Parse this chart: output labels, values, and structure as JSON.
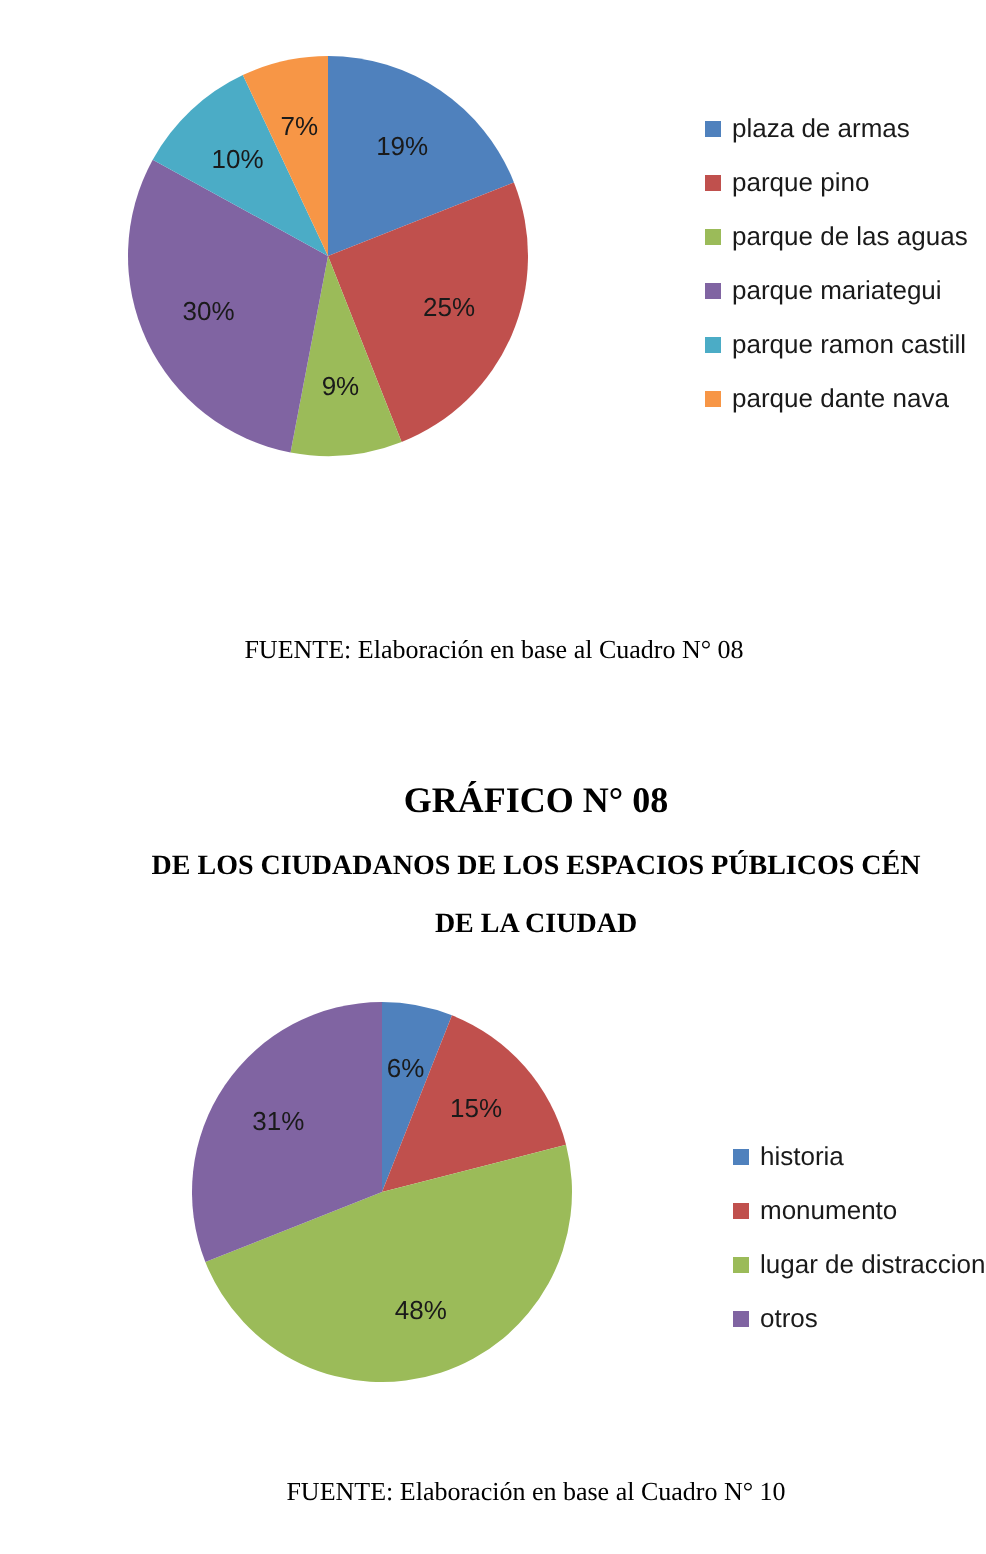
{
  "chart_data": [
    {
      "type": "pie",
      "categories": [
        "plaza de armas",
        "parque pino",
        "parque de las aguas",
        "parque mariategui",
        "parque ramon castill",
        "parque dante nava"
      ],
      "values": [
        19,
        25,
        9,
        30,
        10,
        7
      ],
      "value_labels": [
        "19%",
        "25%",
        "9%",
        "30%",
        "10%",
        "7%"
      ],
      "colors": [
        "#4f81bd",
        "#c0504d",
        "#9bbb59",
        "#8064a2",
        "#4bacc6",
        "#f79646"
      ],
      "legend": "right",
      "annotations": [
        "FUENTE: Elaboración en base al Cuadro N° 08"
      ]
    },
    {
      "type": "pie",
      "title": "GRÁFICO N° 08",
      "subtitle": "DE LOS CIUDADANOS DE LOS ESPACIOS PÚBLICOS CÉN\nDE LA CIUDAD",
      "categories": [
        "historia",
        "monumento",
        "lugar de distraccion",
        "otros"
      ],
      "values": [
        6,
        15,
        48,
        31
      ],
      "value_labels": [
        "6%",
        "15%",
        "48%",
        "31%"
      ],
      "colors": [
        "#4f81bd",
        "#c0504d",
        "#9bbb59",
        "#8064a2"
      ],
      "legend": "right",
      "annotations": [
        "FUENTE: Elaboración en base al Cuadro N° 10"
      ]
    }
  ]
}
